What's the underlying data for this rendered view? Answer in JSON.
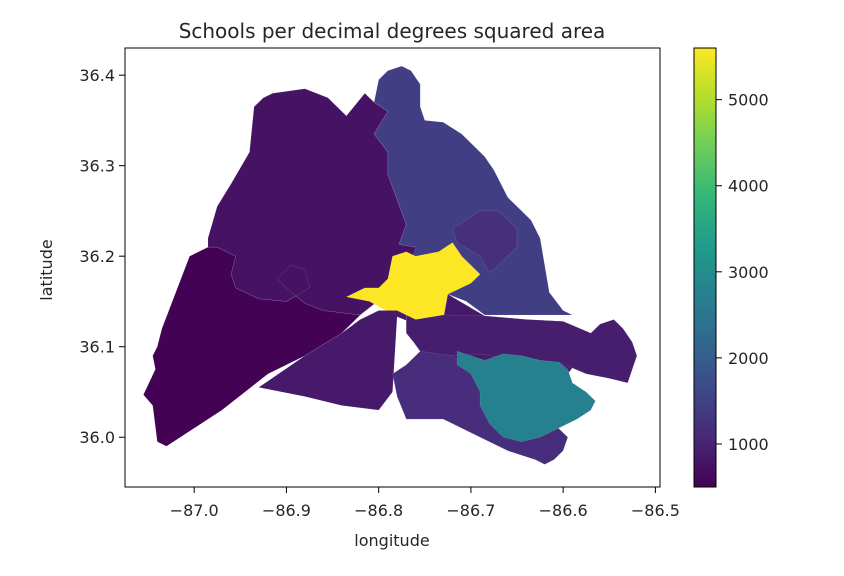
{
  "chart_data": {
    "type": "choropleth",
    "title": "Schools per decimal degrees squared area",
    "xlabel": "longitude",
    "ylabel": "latitude",
    "xlim": [
      -87.075,
      -86.495
    ],
    "ylim": [
      35.945,
      36.43
    ],
    "xticks": [
      -87.0,
      -86.9,
      -86.8,
      -86.7,
      -86.6,
      -86.5
    ],
    "xtick_labels": [
      "−87.0",
      "−86.9",
      "−86.8",
      "−86.7",
      "−86.6",
      "−86.5"
    ],
    "yticks": [
      36.0,
      36.1,
      36.2,
      36.3,
      36.4
    ],
    "ytick_labels": [
      "36.0",
      "36.1",
      "36.2",
      "36.3",
      "36.4"
    ],
    "colorbar": {
      "cmap": "viridis",
      "vmin": 500,
      "vmax": 5600,
      "ticks": [
        1000,
        2000,
        3000,
        4000,
        5000
      ],
      "tick_labels": [
        "1000",
        "2000",
        "3000",
        "4000",
        "5000"
      ]
    },
    "regions": [
      {
        "value": 520,
        "polygon": [
          [
            -87.055,
            36.047
          ],
          [
            -87.045,
            36.035
          ],
          [
            -87.04,
            35.995
          ],
          [
            -87.03,
            35.99
          ],
          [
            -86.97,
            36.03
          ],
          [
            -86.92,
            36.07
          ],
          [
            -86.88,
            36.09
          ],
          [
            -86.84,
            36.115
          ],
          [
            -86.82,
            36.135
          ],
          [
            -86.86,
            36.14
          ],
          [
            -86.88,
            36.148
          ],
          [
            -86.9,
            36.165
          ],
          [
            -86.91,
            36.175
          ],
          [
            -86.895,
            36.19
          ],
          [
            -86.88,
            36.185
          ],
          [
            -86.875,
            36.165
          ],
          [
            -86.9,
            36.15
          ],
          [
            -86.93,
            36.153
          ],
          [
            -86.955,
            36.165
          ],
          [
            -86.96,
            36.18
          ],
          [
            -86.955,
            36.2
          ],
          [
            -86.975,
            36.21
          ],
          [
            -86.985,
            36.21
          ],
          [
            -87.005,
            36.2
          ],
          [
            -87.035,
            36.12
          ],
          [
            -87.04,
            36.1
          ],
          [
            -87.045,
            36.09
          ],
          [
            -87.042,
            36.075
          ]
        ]
      },
      {
        "value": 750,
        "polygon": [
          [
            -86.985,
            36.21
          ],
          [
            -86.975,
            36.21
          ],
          [
            -86.955,
            36.2
          ],
          [
            -86.96,
            36.18
          ],
          [
            -86.955,
            36.165
          ],
          [
            -86.93,
            36.153
          ],
          [
            -86.9,
            36.15
          ],
          [
            -86.875,
            36.165
          ],
          [
            -86.88,
            36.185
          ],
          [
            -86.895,
            36.19
          ],
          [
            -86.91,
            36.175
          ],
          [
            -86.9,
            36.165
          ],
          [
            -86.88,
            36.148
          ],
          [
            -86.86,
            36.14
          ],
          [
            -86.82,
            36.135
          ],
          [
            -86.77,
            36.175
          ],
          [
            -86.76,
            36.2
          ],
          [
            -86.76,
            36.21
          ],
          [
            -86.778,
            36.213
          ],
          [
            -86.77,
            36.235
          ],
          [
            -86.79,
            36.29
          ],
          [
            -86.79,
            36.315
          ],
          [
            -86.805,
            36.335
          ],
          [
            -86.79,
            36.36
          ],
          [
            -86.805,
            36.37
          ],
          [
            -86.815,
            36.38
          ],
          [
            -86.835,
            36.355
          ],
          [
            -86.855,
            36.375
          ],
          [
            -86.88,
            36.385
          ],
          [
            -86.915,
            36.38
          ],
          [
            -86.925,
            36.375
          ],
          [
            -86.935,
            36.365
          ],
          [
            -86.94,
            36.315
          ],
          [
            -86.96,
            36.28
          ],
          [
            -86.975,
            36.255
          ],
          [
            -86.985,
            36.22
          ]
        ]
      },
      {
        "value": 1450,
        "polygon": [
          [
            -86.805,
            36.37
          ],
          [
            -86.8,
            36.395
          ],
          [
            -86.79,
            36.405
          ],
          [
            -86.775,
            36.41
          ],
          [
            -86.765,
            36.405
          ],
          [
            -86.755,
            36.39
          ],
          [
            -86.755,
            36.365
          ],
          [
            -86.75,
            36.35
          ],
          [
            -86.73,
            36.348
          ],
          [
            -86.71,
            36.335
          ],
          [
            -86.7,
            36.325
          ],
          [
            -86.685,
            36.31
          ],
          [
            -86.675,
            36.295
          ],
          [
            -86.66,
            36.265
          ],
          [
            -86.635,
            36.24
          ],
          [
            -86.625,
            36.22
          ],
          [
            -86.615,
            36.16
          ],
          [
            -86.6,
            36.14
          ],
          [
            -86.59,
            36.135
          ],
          [
            -86.685,
            36.135
          ],
          [
            -86.705,
            36.15
          ],
          [
            -86.725,
            36.158
          ],
          [
            -86.73,
            36.17
          ],
          [
            -86.745,
            36.2
          ],
          [
            -86.76,
            36.2
          ],
          [
            -86.77,
            36.175
          ],
          [
            -86.76,
            36.21
          ],
          [
            -86.778,
            36.213
          ],
          [
            -86.77,
            36.235
          ],
          [
            -86.79,
            36.29
          ],
          [
            -86.79,
            36.315
          ],
          [
            -86.805,
            36.335
          ],
          [
            -86.79,
            36.36
          ]
        ]
      },
      {
        "value": 1180,
        "polygon": [
          [
            -86.72,
            36.23
          ],
          [
            -86.69,
            36.25
          ],
          [
            -86.67,
            36.25
          ],
          [
            -86.65,
            36.23
          ],
          [
            -86.65,
            36.21
          ],
          [
            -86.67,
            36.19
          ],
          [
            -86.68,
            36.182
          ],
          [
            -86.69,
            36.2
          ],
          [
            -86.715,
            36.215
          ]
        ]
      },
      {
        "value": 5600,
        "polygon": [
          [
            -86.835,
            36.155
          ],
          [
            -86.815,
            36.165
          ],
          [
            -86.8,
            36.165
          ],
          [
            -86.79,
            36.175
          ],
          [
            -86.785,
            36.2
          ],
          [
            -86.77,
            36.205
          ],
          [
            -86.76,
            36.2
          ],
          [
            -86.735,
            36.205
          ],
          [
            -86.72,
            36.215
          ],
          [
            -86.71,
            36.2
          ],
          [
            -86.69,
            36.18
          ],
          [
            -86.7,
            36.17
          ],
          [
            -86.725,
            36.158
          ],
          [
            -86.73,
            36.13
          ],
          [
            -86.76,
            36.125
          ],
          [
            -86.78,
            36.133
          ],
          [
            -86.81,
            36.15
          ]
        ]
      },
      {
        "value": 850,
        "polygon": [
          [
            -86.93,
            36.055
          ],
          [
            -86.88,
            36.09
          ],
          [
            -86.84,
            36.115
          ],
          [
            -86.82,
            36.13
          ],
          [
            -86.8,
            36.14
          ],
          [
            -86.78,
            36.14
          ],
          [
            -86.77,
            36.135
          ],
          [
            -86.77,
            36.115
          ],
          [
            -86.762,
            36.105
          ],
          [
            -86.755,
            36.095
          ],
          [
            -86.76,
            36.08
          ],
          [
            -86.75,
            36.065
          ],
          [
            -86.7,
            36.06
          ],
          [
            -86.65,
            36.056
          ],
          [
            -86.615,
            36.06
          ],
          [
            -86.595,
            36.07
          ],
          [
            -86.58,
            36.09
          ],
          [
            -86.57,
            36.115
          ],
          [
            -86.6,
            36.128
          ],
          [
            -86.64,
            36.13
          ],
          [
            -86.685,
            36.134
          ],
          [
            -86.725,
            36.158
          ],
          [
            -86.73,
            36.13
          ],
          [
            -86.76,
            36.125
          ],
          [
            -86.78,
            36.133
          ],
          [
            -86.785,
            36.05
          ],
          [
            -86.8,
            36.03
          ],
          [
            -86.84,
            36.035
          ],
          [
            -86.88,
            36.045
          ]
        ]
      },
      {
        "value": 900,
        "polygon": [
          [
            -86.76,
            36.13
          ],
          [
            -86.73,
            36.135
          ],
          [
            -86.685,
            36.134
          ],
          [
            -86.64,
            36.13
          ],
          [
            -86.6,
            36.128
          ],
          [
            -86.57,
            36.115
          ],
          [
            -86.56,
            36.125
          ],
          [
            -86.545,
            36.13
          ],
          [
            -86.535,
            36.12
          ],
          [
            -86.525,
            36.105
          ],
          [
            -86.52,
            36.09
          ],
          [
            -86.525,
            36.075
          ],
          [
            -86.53,
            36.06
          ],
          [
            -86.55,
            36.065
          ],
          [
            -86.575,
            36.07
          ],
          [
            -86.605,
            36.083
          ],
          [
            -86.625,
            36.075
          ],
          [
            -86.65,
            36.085
          ],
          [
            -86.69,
            36.092
          ],
          [
            -86.72,
            36.09
          ],
          [
            -86.75,
            36.085
          ],
          [
            -86.755,
            36.095
          ],
          [
            -86.762,
            36.105
          ],
          [
            -86.77,
            36.115
          ],
          [
            -86.77,
            36.135
          ]
        ]
      },
      {
        "value": 1150,
        "polygon": [
          [
            -86.755,
            36.095
          ],
          [
            -86.72,
            36.09
          ],
          [
            -86.7,
            36.075
          ],
          [
            -86.675,
            36.07
          ],
          [
            -86.665,
            36.05
          ],
          [
            -86.66,
            36.03
          ],
          [
            -86.63,
            36.015
          ],
          [
            -86.63,
            36.005
          ],
          [
            -86.605,
            36.01
          ],
          [
            -86.595,
            36.0
          ],
          [
            -86.6,
            35.985
          ],
          [
            -86.61,
            35.975
          ],
          [
            -86.62,
            35.97
          ],
          [
            -86.63,
            35.975
          ],
          [
            -86.66,
            35.985
          ],
          [
            -86.69,
            36.0
          ],
          [
            -86.73,
            36.02
          ],
          [
            -86.77,
            36.02
          ],
          [
            -86.78,
            36.045
          ],
          [
            -86.785,
            36.07
          ],
          [
            -86.77,
            36.08
          ]
        ]
      },
      {
        "value": 2750,
        "polygon": [
          [
            -86.715,
            36.095
          ],
          [
            -86.7,
            36.09
          ],
          [
            -86.685,
            36.085
          ],
          [
            -86.665,
            36.092
          ],
          [
            -86.645,
            36.09
          ],
          [
            -86.625,
            36.085
          ],
          [
            -86.605,
            36.083
          ],
          [
            -86.595,
            36.075
          ],
          [
            -86.59,
            36.06
          ],
          [
            -86.575,
            36.05
          ],
          [
            -86.565,
            36.04
          ],
          [
            -86.57,
            36.03
          ],
          [
            -86.585,
            36.02
          ],
          [
            -86.605,
            36.01
          ],
          [
            -86.625,
            36.0
          ],
          [
            -86.645,
            35.995
          ],
          [
            -86.665,
            36.0
          ],
          [
            -86.68,
            36.015
          ],
          [
            -86.69,
            36.035
          ],
          [
            -86.69,
            36.05
          ],
          [
            -86.7,
            36.07
          ],
          [
            -86.715,
            36.08
          ]
        ]
      }
    ]
  }
}
